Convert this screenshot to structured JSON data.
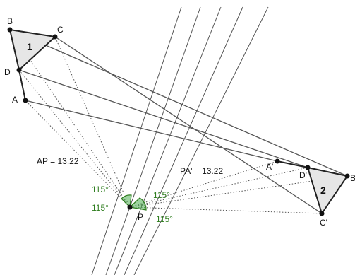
{
  "colors": {
    "line": "#555555",
    "segment": "#222222",
    "dotted": "#555555",
    "fill": "#e6e6e6",
    "angle_fill": "#4caf50",
    "angle_text": "#2e7d1e",
    "point": "#111111"
  },
  "points": {
    "A": "A",
    "B": "B",
    "C": "C",
    "D": "D",
    "A_prime": "A'",
    "B_prime": "B'",
    "C_prime": "C'",
    "D_prime": "D'",
    "P": "P"
  },
  "shapes": {
    "shape1_number": "1",
    "shape2_number": "2"
  },
  "measurements": {
    "ap": "AP = 13.22",
    "pa_prime": "PA' = 13.22"
  },
  "angles": {
    "left_top": "115°",
    "left_bottom": "115°",
    "right_top": "115°",
    "right_bottom": "115°"
  }
}
